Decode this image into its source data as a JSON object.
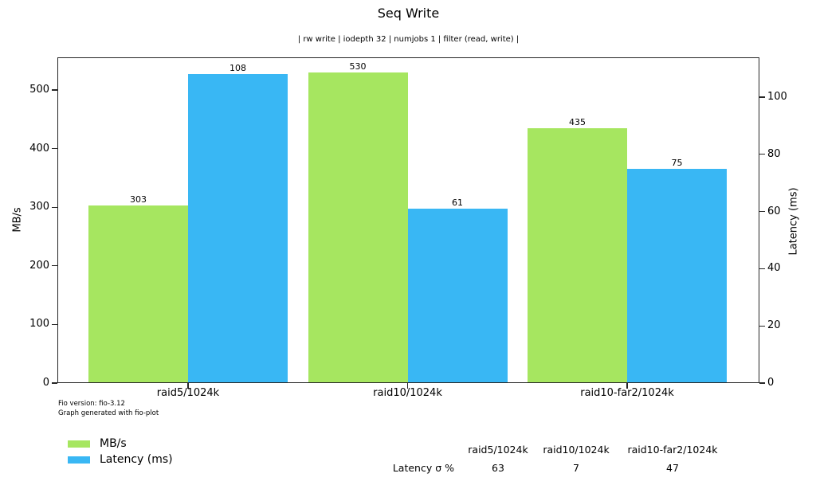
{
  "title": "Seq Write",
  "subtitle": "| rw write | iodepth 32 | numjobs 1 | filter (read, write) |",
  "colors": {
    "mbs": "#a6e660",
    "latency": "#39b7f4",
    "axis": "#262626",
    "text": "#000000"
  },
  "chart_data": {
    "type": "bar",
    "categories": [
      "raid5/1024k",
      "raid10/1024k",
      "raid10-far2/1024k"
    ],
    "series": [
      {
        "name": "MB/s",
        "axis": "left",
        "color_key": "mbs",
        "values": [
          303,
          530,
          435
        ]
      },
      {
        "name": "Latency (ms)",
        "axis": "right",
        "color_key": "latency",
        "values": [
          108,
          61,
          75
        ]
      }
    ],
    "left_axis": {
      "label": "MB/s",
      "ticks": [
        0,
        100,
        200,
        300,
        400,
        500
      ],
      "range": [
        0,
        555
      ]
    },
    "right_axis": {
      "label": "Latency (ms)",
      "ticks": [
        0,
        20,
        40,
        60,
        80,
        100
      ],
      "range": [
        0,
        114
      ]
    },
    "bar_value_labels": true,
    "grid": false,
    "legend_position": "bottom-left"
  },
  "legend": {
    "items": [
      {
        "label": "MB/s",
        "color_key": "mbs"
      },
      {
        "label": "Latency (ms)",
        "color_key": "latency"
      }
    ]
  },
  "footer": {
    "line1": "Fio version: fio-3.12",
    "line2": "Graph generated with fio-plot"
  },
  "table": {
    "row_label": "Latency σ %",
    "columns": [
      "raid5/1024k",
      "raid10/1024k",
      "raid10-far2/1024k"
    ],
    "values": [
      "63",
      "7",
      "47"
    ]
  }
}
